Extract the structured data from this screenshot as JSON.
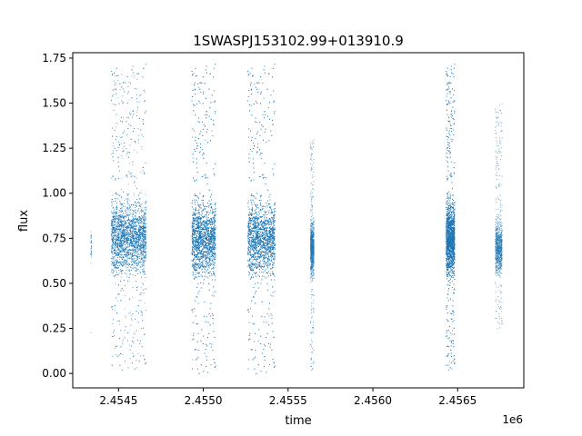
{
  "chart_data": {
    "type": "scatter",
    "title": "1SWASPJ153102.99+013910.9",
    "xlabel": "time",
    "ylabel": "flux",
    "x_offset_label": "1e6",
    "xlim": [
      2454230,
      2456890
    ],
    "ylim": [
      -0.08,
      1.78
    ],
    "x_ticks": [
      2454500,
      2455000,
      2455500,
      2456000,
      2456500
    ],
    "x_tick_labels": [
      "2.4545",
      "2.4550",
      "2.4555",
      "2.4560",
      "2.4565"
    ],
    "y_ticks": [
      0.0,
      0.25,
      0.5,
      0.75,
      1.0,
      1.25,
      1.5,
      1.75
    ],
    "y_tick_labels": [
      "0.00",
      "0.25",
      "0.50",
      "0.75",
      "1.00",
      "1.25",
      "1.50",
      "1.75"
    ],
    "point_color": "#1f77b4",
    "grid": false,
    "legend": "none",
    "clusters": [
      {
        "x_range": [
          2454334,
          2454338
        ],
        "y_range": [
          0.2,
          1.07
        ],
        "y_center": 0.7,
        "density": "sparse"
      },
      {
        "x_range": [
          2454455,
          2454660
        ],
        "y_range": [
          0.02,
          1.72
        ],
        "y_center": 0.76,
        "density": "dense"
      },
      {
        "x_range": [
          2454930,
          2455070
        ],
        "y_range": [
          0.0,
          1.72
        ],
        "y_center": 0.75,
        "density": "dense"
      },
      {
        "x_range": [
          2455260,
          2455420
        ],
        "y_range": [
          0.0,
          1.72
        ],
        "y_center": 0.75,
        "density": "dense"
      },
      {
        "x_range": [
          2455630,
          2455650
        ],
        "y_range": [
          0.02,
          1.3
        ],
        "y_center": 0.7,
        "density": "medium"
      },
      {
        "x_range": [
          2456430,
          2456480
        ],
        "y_range": [
          0.02,
          1.72
        ],
        "y_center": 0.75,
        "density": "dense"
      },
      {
        "x_range": [
          2456720,
          2456760
        ],
        "y_range": [
          0.25,
          1.5
        ],
        "y_center": 0.7,
        "density": "medium"
      }
    ]
  }
}
